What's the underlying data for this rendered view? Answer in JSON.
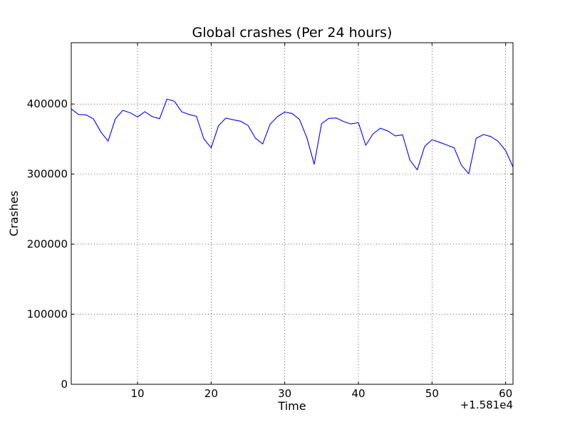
{
  "chart_data": {
    "type": "line",
    "title": "Global crashes (Per 24 hours)",
    "xlabel": "Time",
    "ylabel": "Crashes",
    "x_offset_label": "+1.581e4",
    "xlim": [
      1,
      61
    ],
    "ylim": [
      0,
      487500
    ],
    "grid": true,
    "x_ticks": [
      10,
      20,
      30,
      40,
      50,
      60
    ],
    "y_ticks": [
      0,
      100000,
      200000,
      300000,
      400000
    ],
    "x_tick_labels": [
      "10",
      "20",
      "30",
      "40",
      "50",
      "60"
    ],
    "y_tick_labels": [
      "0",
      "100000",
      "200000",
      "300000",
      "400000"
    ],
    "colors": {
      "line": "#0000ff",
      "grid": "#000000",
      "axes": "#000000"
    },
    "series": [
      {
        "x": [
          1,
          2,
          3,
          4,
          5,
          6,
          7,
          8,
          9,
          10,
          11,
          12,
          13,
          14,
          15,
          16,
          17,
          18,
          19,
          20,
          21,
          22,
          23,
          24,
          25,
          26,
          27,
          28,
          29,
          30,
          31,
          32,
          33,
          34,
          35,
          36,
          37,
          38,
          39,
          40,
          41,
          42,
          43,
          44,
          45,
          46,
          47,
          48,
          49,
          50,
          51,
          52,
          53,
          54,
          55,
          56,
          57,
          58,
          59,
          60,
          61
        ],
        "values": [
          393000,
          385000,
          384500,
          379000,
          360500,
          347000,
          379000,
          391000,
          387500,
          381500,
          389000,
          382000,
          379000,
          407000,
          404000,
          389000,
          385000,
          382500,
          350500,
          337500,
          369000,
          380000,
          377500,
          375500,
          369500,
          351500,
          343000,
          371000,
          382000,
          388500,
          386500,
          378000,
          352000,
          314000,
          372000,
          379500,
          380000,
          375000,
          371500,
          373500,
          341000,
          357500,
          365500,
          361500,
          354500,
          356000,
          320000,
          306000,
          339500,
          349000,
          345500,
          341500,
          337500,
          312500,
          300500,
          351000,
          356500,
          353500,
          346500,
          333500,
          310000
        ]
      }
    ]
  }
}
